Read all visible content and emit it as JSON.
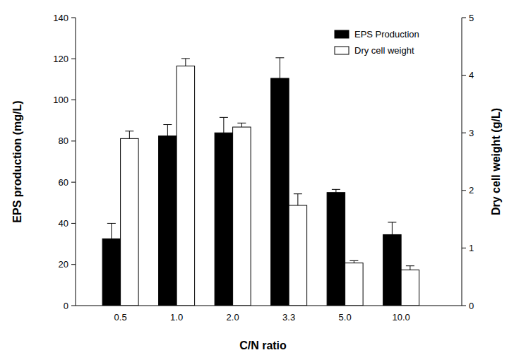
{
  "chart_data": {
    "type": "bar",
    "x_label": "C/N ratio",
    "y_label": "EPS production (mg/L)",
    "y2_label": "Dry cell weight (g/L)",
    "categories": [
      "0.5",
      "1.0",
      "2.0",
      "3.3",
      "5.0",
      "10.0"
    ],
    "series": [
      {
        "name": "EPS Production",
        "color": "#000000",
        "values": [
          32.5,
          82.5,
          84,
          110.5,
          55,
          34.5
        ],
        "errors": [
          7.5,
          5.5,
          7.5,
          10,
          1.5,
          6
        ]
      },
      {
        "name": "Dry cell weight",
        "color": "#ffffff",
        "axis": "y2",
        "values": [
          2.9,
          4.16,
          3.1,
          1.74,
          0.74,
          0.62
        ],
        "errors": [
          0.13,
          0.13,
          0.07,
          0.2,
          0.04,
          0.07
        ]
      }
    ],
    "ylim": [
      0,
      140
    ],
    "yticks": [
      0,
      20,
      40,
      60,
      80,
      100,
      120,
      140
    ],
    "y2lim": [
      0,
      5
    ],
    "y2ticks": [
      0,
      1,
      2,
      3,
      4,
      5
    ],
    "legend": "top-right",
    "grid": false
  }
}
